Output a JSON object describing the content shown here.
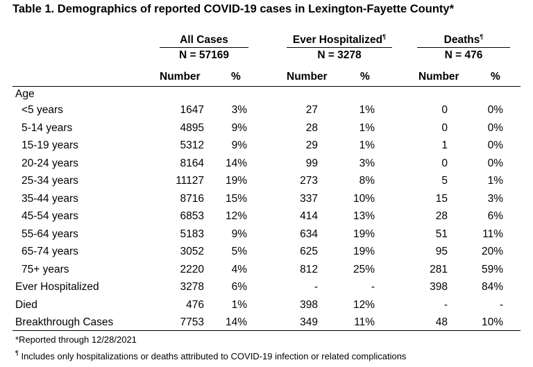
{
  "title": "Table 1. Demographics of reported COVID-19 cases in Lexington-Fayette County*",
  "groups": [
    {
      "name": "All Cases",
      "sup": "",
      "n": "N = 57169"
    },
    {
      "name": "Ever Hospitalized",
      "sup": "¶",
      "n": "N = 3278"
    },
    {
      "name": "Deaths",
      "sup": "¶",
      "n": "N = 476"
    }
  ],
  "subheaders": {
    "number": "Number",
    "pct": "%"
  },
  "section_label": "Age",
  "rows": [
    {
      "label": "<5 years",
      "indent": true,
      "cells": [
        "1647",
        "3%",
        "27",
        "1%",
        "0",
        "0%"
      ]
    },
    {
      "label": "5-14 years",
      "indent": true,
      "cells": [
        "4895",
        "9%",
        "28",
        "1%",
        "0",
        "0%"
      ]
    },
    {
      "label": "15-19 years",
      "indent": true,
      "cells": [
        "5312",
        "9%",
        "29",
        "1%",
        "1",
        "0%"
      ]
    },
    {
      "label": "20-24 years",
      "indent": true,
      "cells": [
        "8164",
        "14%",
        "99",
        "3%",
        "0",
        "0%"
      ]
    },
    {
      "label": "25-34 years",
      "indent": true,
      "cells": [
        "11127",
        "19%",
        "273",
        "8%",
        "5",
        "1%"
      ]
    },
    {
      "label": "35-44 years",
      "indent": true,
      "cells": [
        "8716",
        "15%",
        "337",
        "10%",
        "15",
        "3%"
      ]
    },
    {
      "label": "45-54 years",
      "indent": true,
      "cells": [
        "6853",
        "12%",
        "414",
        "13%",
        "28",
        "6%"
      ]
    },
    {
      "label": "55-64 years",
      "indent": true,
      "cells": [
        "5183",
        "9%",
        "634",
        "19%",
        "51",
        "11%"
      ]
    },
    {
      "label": "65-74 years",
      "indent": true,
      "cells": [
        "3052",
        "5%",
        "625",
        "19%",
        "95",
        "20%"
      ]
    },
    {
      "label": "75+ years",
      "indent": true,
      "cells": [
        "2220",
        "4%",
        "812",
        "25%",
        "281",
        "59%"
      ]
    },
    {
      "label": "Ever Hospitalized",
      "indent": false,
      "cells": [
        "3278",
        "6%",
        "-",
        "-",
        "398",
        "84%"
      ]
    },
    {
      "label": "Died",
      "indent": false,
      "cells": [
        "476",
        "1%",
        "398",
        "12%",
        "-",
        "-"
      ]
    },
    {
      "label": "Breakthrough Cases",
      "indent": false,
      "cells": [
        "7753",
        "14%",
        "349",
        "11%",
        "48",
        "10%"
      ]
    }
  ],
  "footnotes": [
    {
      "mark": "",
      "text": "*Reported through 12/28/2021"
    },
    {
      "mark": "¶",
      "text": " Includes only hospitalizations or deaths attributed to COVID-19 infection or related complications"
    }
  ]
}
